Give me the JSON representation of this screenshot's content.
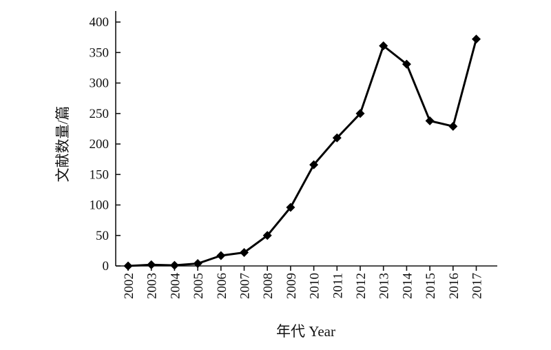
{
  "chart_data": {
    "type": "line",
    "xlabel": "年代 Year",
    "ylabel": "文献数量/篇",
    "ylim": [
      0,
      400
    ],
    "yticks": [
      0,
      50,
      100,
      150,
      200,
      250,
      300,
      350,
      400
    ],
    "grid": false,
    "marker": "diamond",
    "color": "#000000",
    "x": [
      "2002",
      "2003",
      "2004",
      "2005",
      "2006",
      "2007",
      "2008",
      "2009",
      "2010",
      "2011",
      "2012",
      "2013",
      "2014",
      "2015",
      "2016",
      "2017"
    ],
    "values": [
      0,
      2,
      1,
      4,
      17,
      22,
      50,
      96,
      166,
      210,
      250,
      361,
      331,
      238,
      229,
      372
    ]
  }
}
